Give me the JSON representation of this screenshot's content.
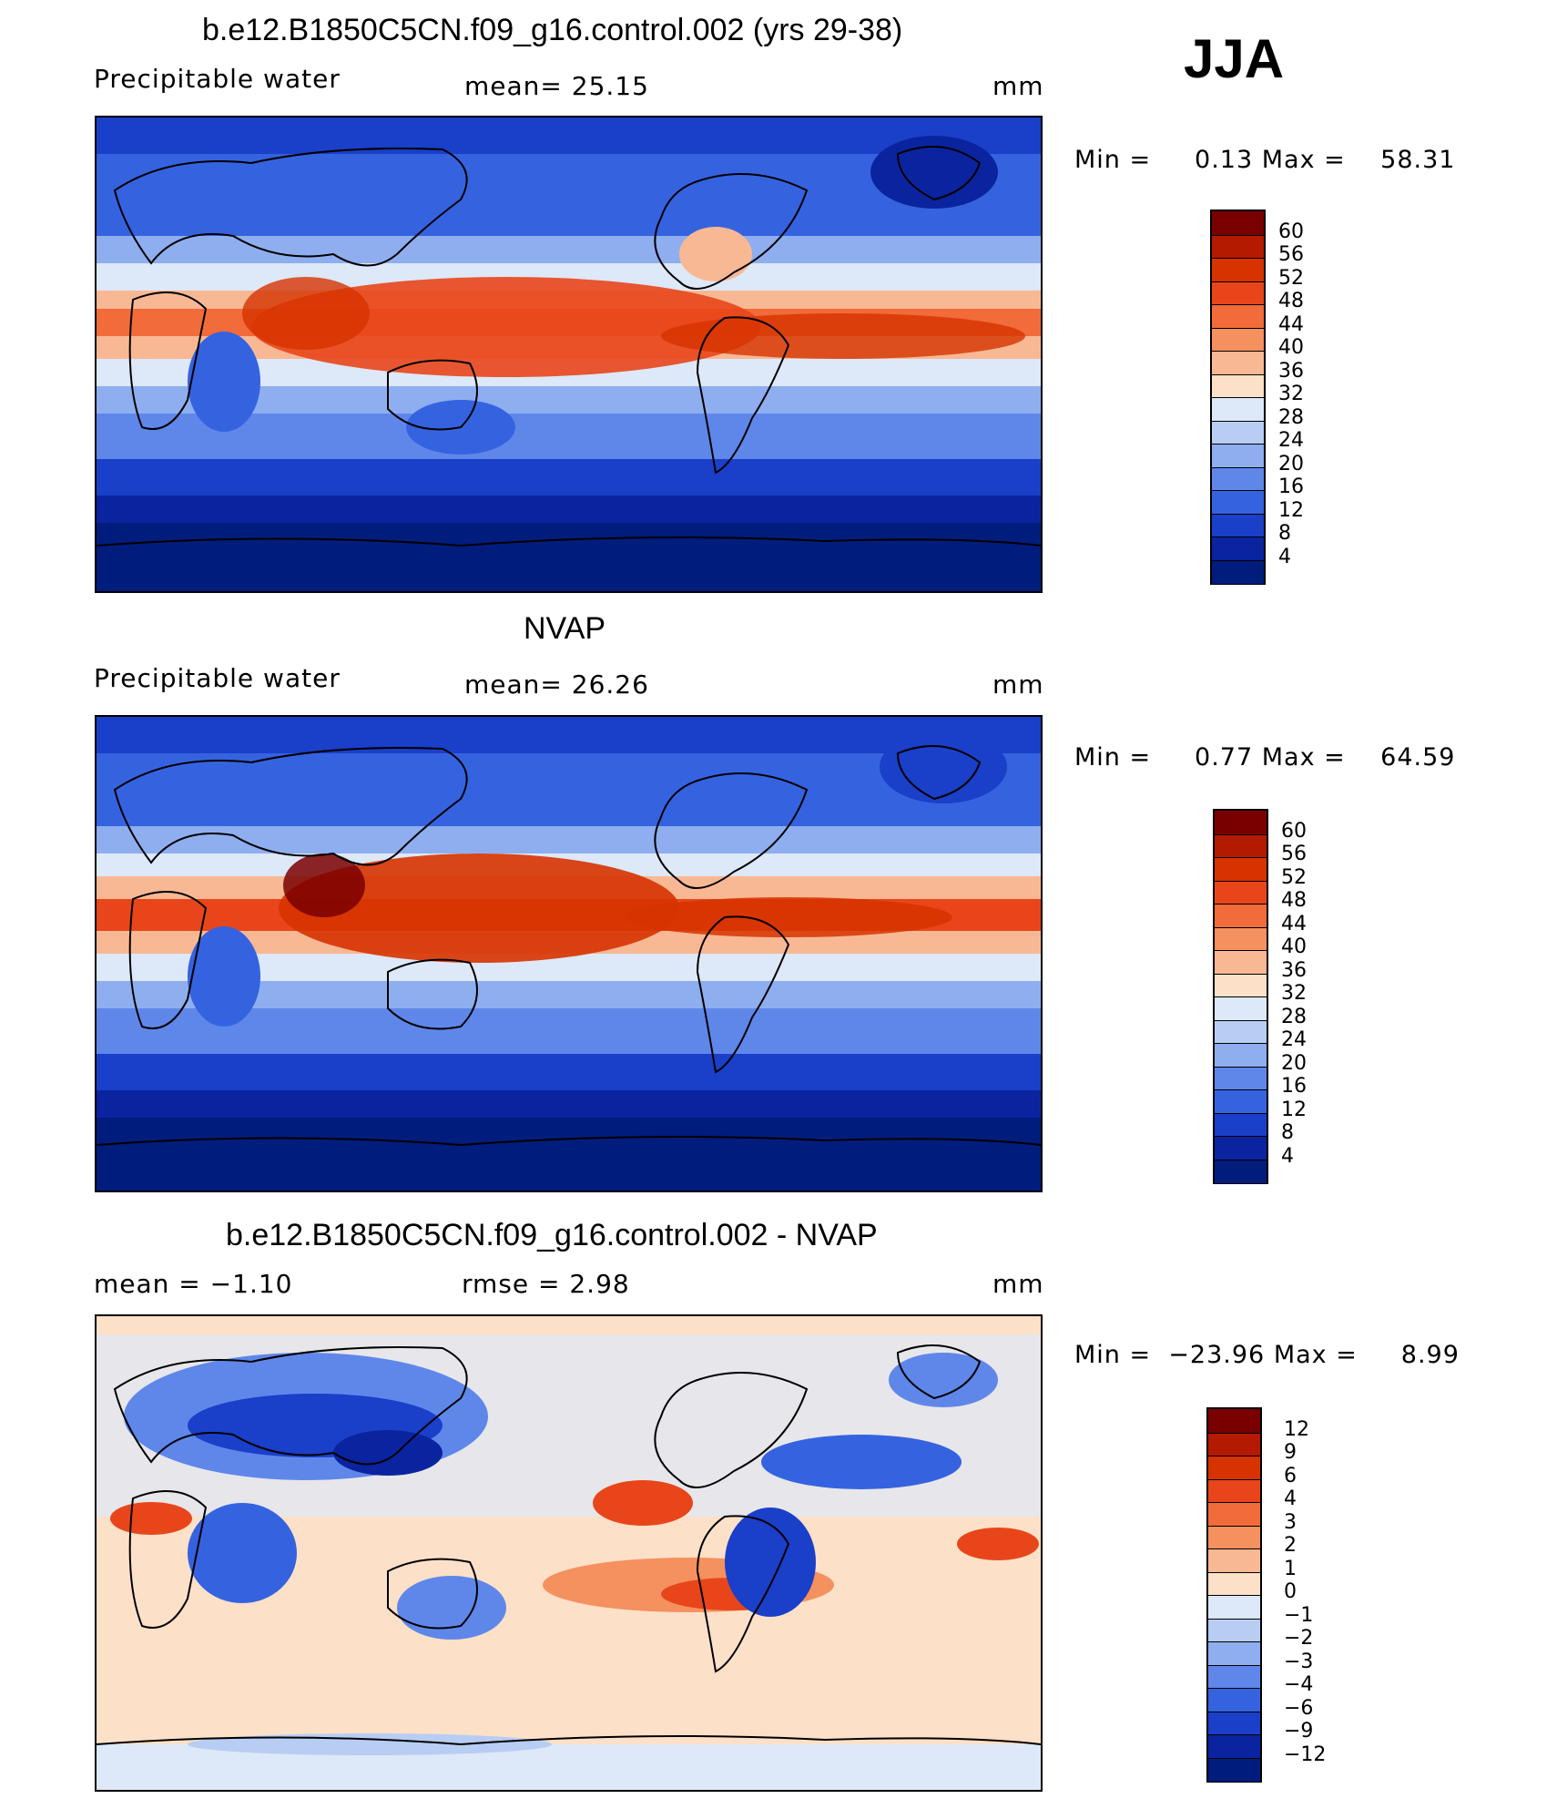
{
  "season": "JJA",
  "units": "mm",
  "panels": [
    {
      "title": "b.e12.B1850C5CN.f09_g16.control.002 (yrs 29-38)",
      "left_label": "Precipitable  water",
      "stat1": "mean=   25.15",
      "stat2": "",
      "units": "mm",
      "min_label": "Min  =",
      "min_value": "0.13",
      "max_label": "Max  =",
      "max_value": "58.31",
      "scale": "abs"
    },
    {
      "title": "NVAP",
      "left_label": "Precipitable  water",
      "stat1": "mean=   26.26",
      "stat2": "",
      "units": "mm",
      "min_label": "Min  =",
      "min_value": "0.77",
      "max_label": "Max  =",
      "max_value": "64.59",
      "scale": "abs"
    },
    {
      "title": "b.e12.B1850C5CN.f09_g16.control.002 - NVAP",
      "left_label": "mean  =    −1.10",
      "stat1": "rmse  =     2.98",
      "stat2": "",
      "units": "mm",
      "min_label": "Min  =",
      "min_value": "−23.96",
      "max_label": "Max  =",
      "max_value": "8.99",
      "scale": "diff"
    }
  ],
  "colorbars": {
    "abs": {
      "levels": [
        "60",
        "56",
        "52",
        "48",
        "44",
        "40",
        "36",
        "32",
        "28",
        "24",
        "20",
        "16",
        "12",
        "8",
        "4"
      ],
      "colors": [
        "#7a0000",
        "#b31a00",
        "#d63300",
        "#e8461a",
        "#f26b3a",
        "#f5905f",
        "#f9b894",
        "#fde0c8",
        "#dde8f8",
        "#b8cdf3",
        "#8eaeef",
        "#5f87ea",
        "#3563e0",
        "#1a3fc9",
        "#0a24a0",
        "#001c7c"
      ]
    },
    "diff": {
      "levels": [
        "12",
        "9",
        "6",
        "4",
        "3",
        "2",
        "1",
        "0",
        "−1",
        "−2",
        "−3",
        "−4",
        "−6",
        "−9",
        "−12"
      ],
      "colors": [
        "#7a0000",
        "#b31a00",
        "#d63300",
        "#e8461a",
        "#f26b3a",
        "#f5905f",
        "#f9b894",
        "#fde0c8",
        "#dde8f8",
        "#b8cdf3",
        "#8eaeef",
        "#5f87ea",
        "#3563e0",
        "#1a3fc9",
        "#0a24a0",
        "#001c7c"
      ]
    }
  }
}
